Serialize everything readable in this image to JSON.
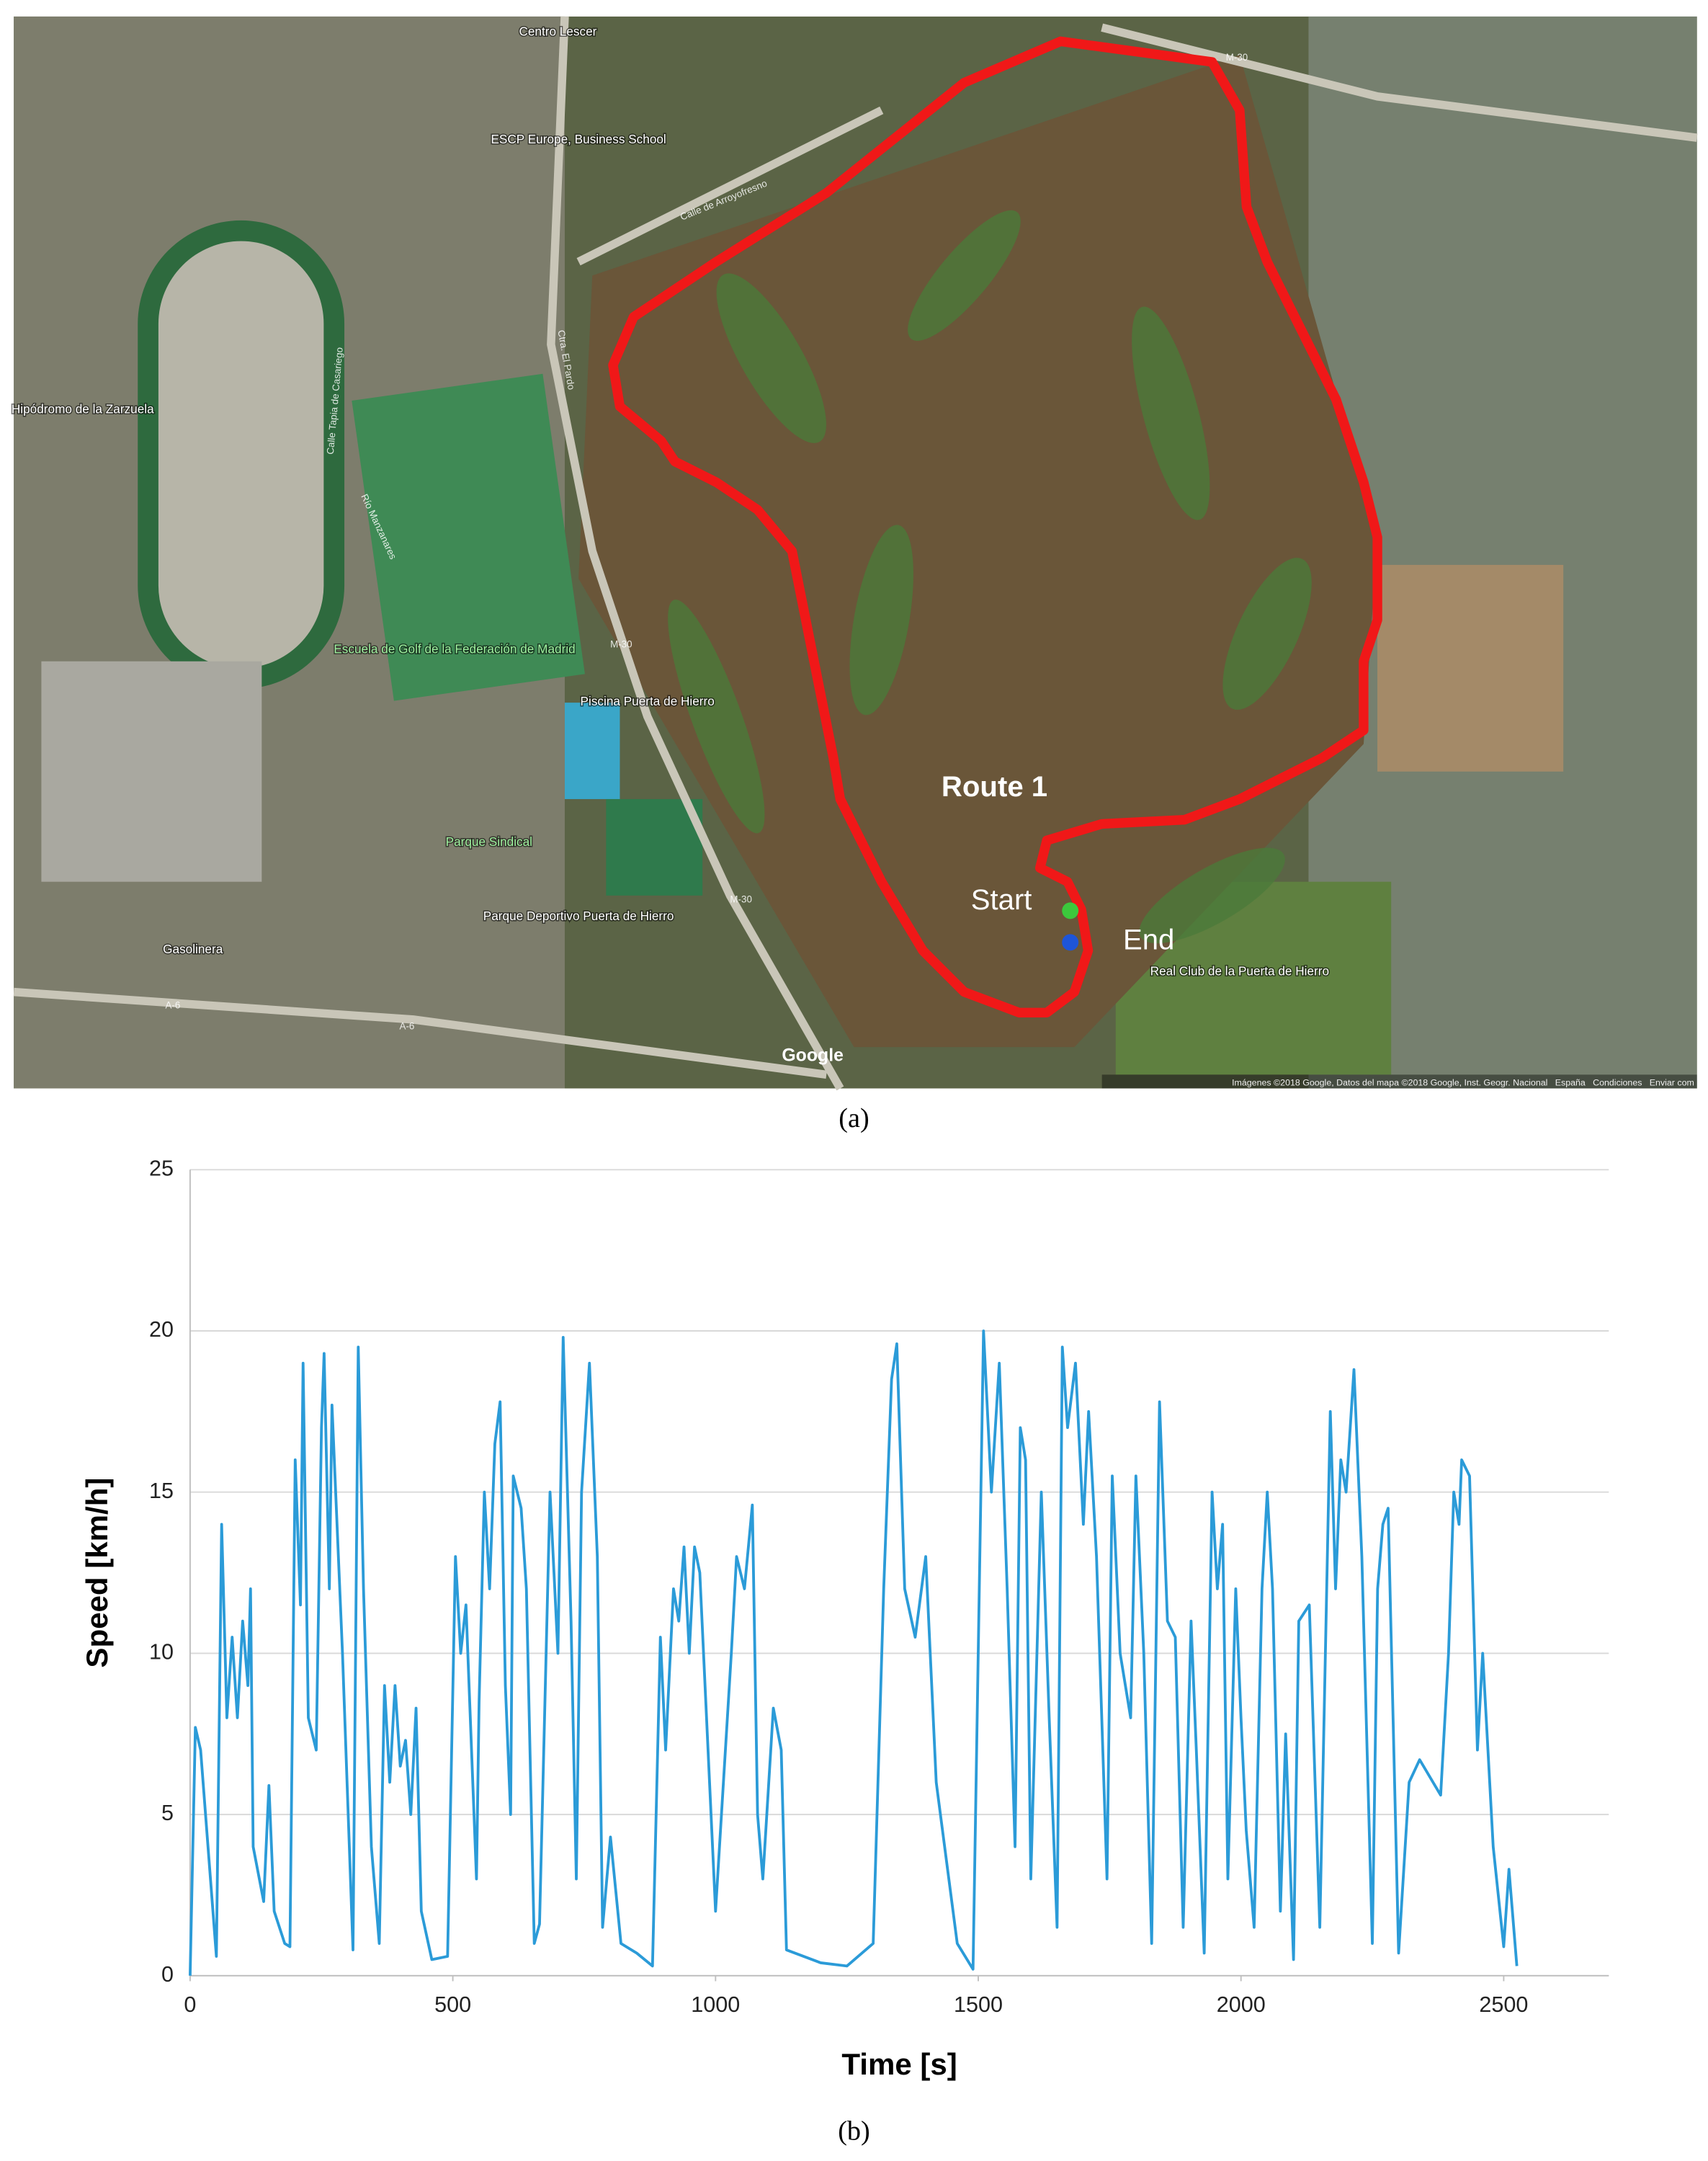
{
  "map": {
    "route_label": "Route 1",
    "start": "Start",
    "end": "End",
    "places": [
      "Centro Lescer",
      "ESCP Europe, Business School",
      "Hipódromo de la Zarzuela",
      "Escuela de Golf de la Federación de Madrid",
      "Piscina Puerta de Hierro",
      "Parque Sindical",
      "Parque Deportivo Puerta de Hierro",
      "Gasolinera",
      "Real Club de la Puerta de Hierro"
    ],
    "roads": [
      "M-30",
      "M-30",
      "M-30",
      "A-6",
      "A-6",
      "Calle de Arroyofresno",
      "Ctra. El Pardo",
      "Calle Tapia de Casariego",
      "Río Manzanares"
    ],
    "logo": "Google",
    "attribution": "Imágenes ©2018 Google, Datos del mapa ©2018 Google, Inst. Geogr. Nacional   España   Condiciones   Enviar com"
  },
  "captions": [
    "(a)",
    "(b)"
  ],
  "chart_data": {
    "type": "line",
    "x_label": "Time [s]",
    "y_label": "Speed [km/h]",
    "xlim": [
      0,
      2700
    ],
    "ylim": [
      0,
      25
    ],
    "xticks": [
      0,
      500,
      1000,
      1500,
      2000,
      2500
    ],
    "yticks": [
      0,
      5,
      10,
      15,
      20,
      25
    ],
    "grid": true,
    "x": [
      0,
      10,
      20,
      50,
      60,
      70,
      80,
      90,
      100,
      110,
      115,
      120,
      140,
      150,
      160,
      180,
      190,
      200,
      210,
      215,
      225,
      240,
      250,
      255,
      265,
      270,
      290,
      310,
      320,
      330,
      345,
      360,
      370,
      380,
      390,
      400,
      410,
      420,
      430,
      440,
      460,
      490,
      505,
      515,
      525,
      545,
      550,
      560,
      570,
      580,
      590,
      600,
      610,
      615,
      630,
      640,
      655,
      665,
      685,
      700,
      710,
      725,
      735,
      745,
      760,
      775,
      785,
      800,
      820,
      850,
      880,
      895,
      905,
      920,
      930,
      940,
      950,
      960,
      970,
      1000,
      1030,
      1040,
      1055,
      1070,
      1080,
      1090,
      1110,
      1125,
      1135,
      1200,
      1250,
      1300,
      1320,
      1335,
      1345,
      1360,
      1380,
      1400,
      1420,
      1460,
      1490,
      1510,
      1525,
      1540,
      1555,
      1570,
      1580,
      1590,
      1600,
      1620,
      1635,
      1650,
      1660,
      1670,
      1685,
      1700,
      1710,
      1725,
      1745,
      1755,
      1770,
      1790,
      1800,
      1815,
      1830,
      1845,
      1860,
      1875,
      1890,
      1905,
      1915,
      1930,
      1945,
      1955,
      1965,
      1975,
      1990,
      2000,
      2010,
      2025,
      2040,
      2050,
      2060,
      2075,
      2085,
      2100,
      2110,
      2130,
      2150,
      2170,
      2180,
      2190,
      2200,
      2215,
      2230,
      2250,
      2260,
      2270,
      2280,
      2300,
      2320,
      2340,
      2380,
      2395,
      2405,
      2415,
      2420,
      2435,
      2450,
      2460,
      2470,
      2480,
      2500,
      2510,
      2525
    ],
    "series": [
      {
        "name": "Speed",
        "color": "#2b9bd8",
        "values": [
          0,
          7.7,
          7,
          0.6,
          14,
          8,
          10.5,
          8,
          11,
          9,
          12,
          4,
          2.3,
          5.9,
          2,
          1,
          0.9,
          16,
          11.5,
          19,
          8,
          7,
          17,
          19.3,
          12,
          17.7,
          10,
          0.8,
          19.5,
          12,
          4,
          1,
          9,
          6,
          9,
          6.5,
          7.3,
          5,
          8.3,
          2,
          0.5,
          0.6,
          13,
          10,
          11.5,
          3,
          8.5,
          15,
          12,
          16.5,
          17.8,
          9,
          5,
          15.5,
          14.5,
          12,
          1,
          1.6,
          15,
          10,
          19.8,
          11,
          3,
          15,
          19,
          13,
          1.5,
          4.3,
          1,
          0.7,
          0.3,
          10.5,
          7,
          12,
          11,
          13.3,
          10,
          13.3,
          12.5,
          2,
          10,
          13,
          12,
          14.6,
          5,
          3,
          8.3,
          7,
          0.8,
          0.4,
          0.3,
          1,
          12,
          18.5,
          19.6,
          12,
          10.5,
          13,
          6,
          1,
          0.2,
          20,
          15,
          19,
          12,
          4,
          17,
          16,
          3,
          15,
          8,
          1.5,
          19.5,
          17,
          19,
          14,
          17.5,
          13,
          3,
          15.5,
          10,
          8,
          15.5,
          10,
          1,
          17.8,
          11,
          10.5,
          1.5,
          11,
          7,
          0.7,
          15,
          12,
          14,
          3,
          12,
          8,
          4.5,
          1.5,
          12,
          15,
          12,
          2,
          7.5,
          0.5,
          11,
          11.5,
          1.5,
          17.5,
          12,
          16,
          15,
          18.8,
          13,
          1,
          12,
          14,
          14.5,
          0.7,
          6,
          6.7,
          5.6,
          10,
          15,
          14,
          16,
          15.5,
          7,
          10,
          7,
          4,
          0.9,
          3.3,
          0.3
        ]
      }
    ]
  }
}
